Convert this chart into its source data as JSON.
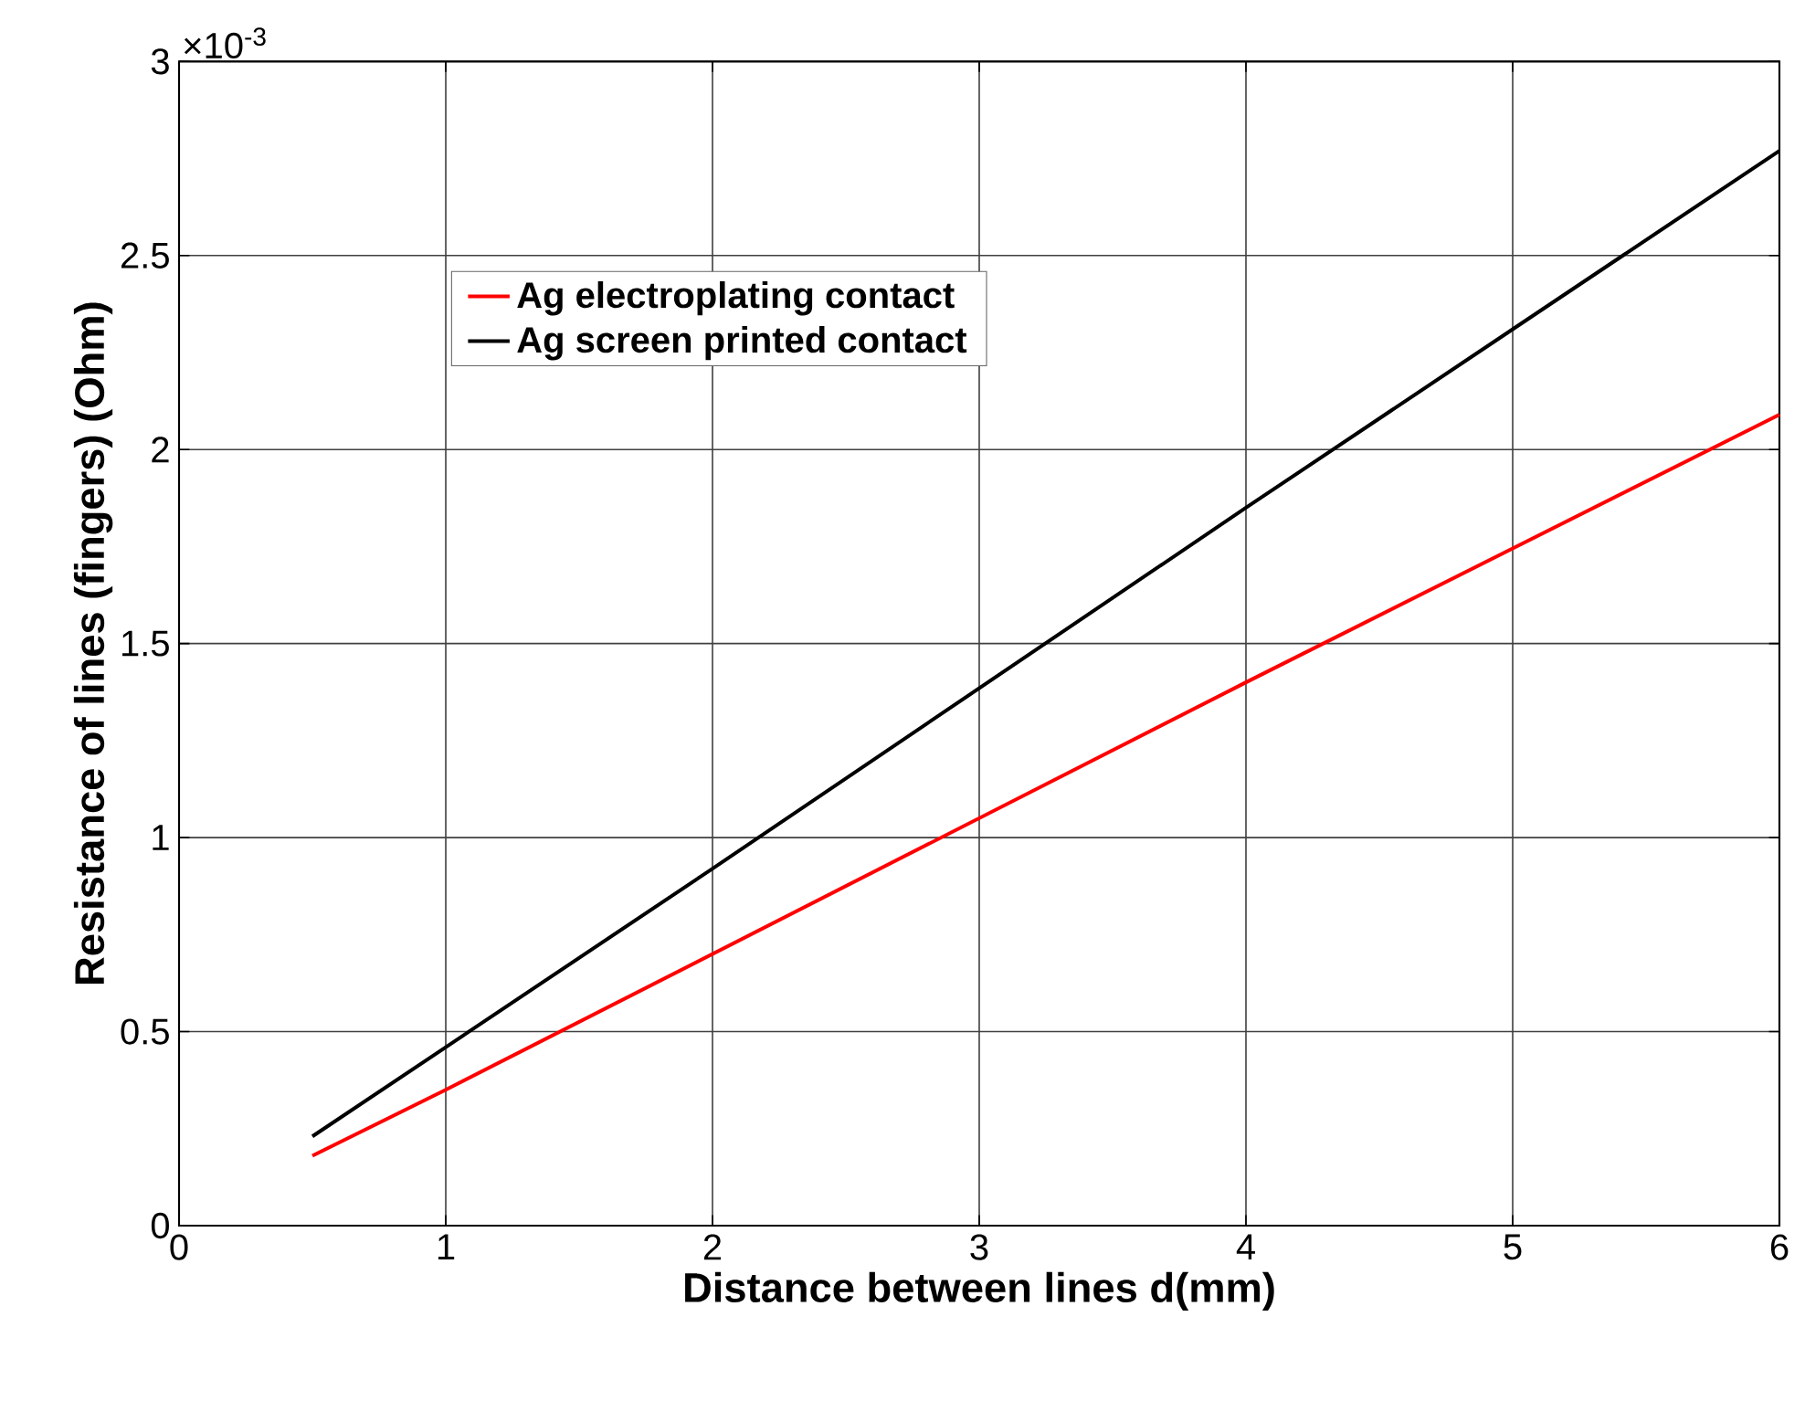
{
  "chart_data": {
    "type": "line",
    "xlabel": "Distance between lines  d(mm)",
    "ylabel": "Resistance of lines (fingers)  (Ohm)",
    "annotations": [
      "×10$^{-3}$"
    ],
    "x": [
      0.5,
      1,
      2,
      3,
      4,
      5,
      6
    ],
    "series": [
      {
        "name": "Ag electroplating contact",
        "color": "#ff0000",
        "values": [
          0.18,
          0.35,
          0.7,
          1.05,
          1.4,
          1.745,
          2.09
        ]
      },
      {
        "name": "Ag screen printed contact",
        "color": "#000000",
        "values": [
          0.23,
          0.46,
          0.92,
          1.385,
          1.85,
          2.31,
          2.77
        ]
      }
    ],
    "xlim": [
      0,
      6
    ],
    "ylim": [
      0,
      3
    ],
    "xticks": [
      0,
      1,
      2,
      3,
      4,
      5,
      6
    ],
    "yticks": [
      0,
      0.5,
      1,
      1.5,
      2,
      2.5,
      3
    ],
    "grid": true,
    "legend": "top left",
    "marker": "none",
    "line_style": "solid"
  }
}
